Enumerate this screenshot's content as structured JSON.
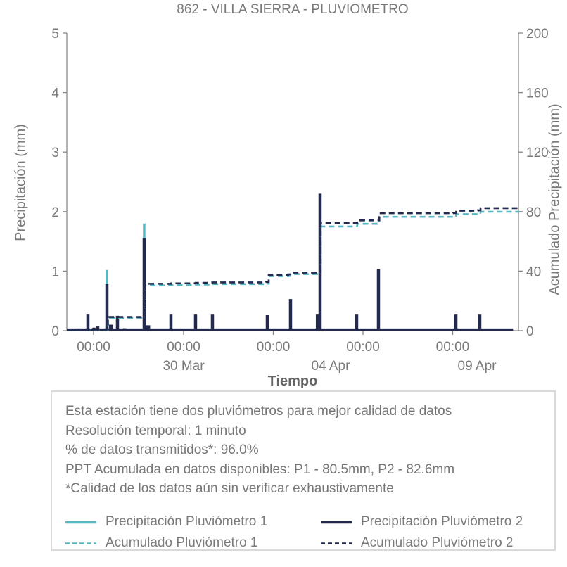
{
  "title": "862 - VILLA SIERRA - PLUVIOMETRO",
  "colors": {
    "teal": "#57b8c4",
    "navy": "#232a4e",
    "axis": "#888888",
    "text": "#7a7a7a",
    "box_border": "#d9d9d9"
  },
  "chart_data": {
    "type": "line",
    "title": "862 - VILLA SIERRA - PLUVIOMETRO",
    "xlabel": "Tiempo",
    "ylabel_left": "Precipitación (mm)",
    "ylabel_right": "Acumulado Precipitación (mm)",
    "ylim_left": [
      0,
      5
    ],
    "ylim_right": [
      0,
      200
    ],
    "yticks_left": [
      0,
      1,
      2,
      3,
      4,
      5
    ],
    "yticks_right": [
      0,
      40,
      80,
      120,
      160,
      200
    ],
    "grid": false,
    "legend_position": "bottom-annotation-box",
    "xticks": [
      {
        "t": 0.0592,
        "label": "00:00"
      },
      {
        "t": 0.2586,
        "label": "00:00"
      },
      {
        "t": 0.4572,
        "label": "00:00"
      },
      {
        "t": 0.6558,
        "label": "00:00"
      },
      {
        "t": 0.8543,
        "label": "00:00"
      }
    ],
    "xdates": [
      {
        "t": 0.2586,
        "label": "30 Mar"
      },
      {
        "t": 0.5841,
        "label": "04 Apr"
      },
      {
        "t": 0.9081,
        "label": "09 Apr"
      }
    ],
    "series": [
      {
        "name": "Precipitación Pluviómetro 1",
        "color": "#57b8c4",
        "kind": "spikes",
        "axis": "left",
        "width": 3.5,
        "baseline": false,
        "points": [
          [
            0.0888,
            1.02
          ],
          [
            0.1713,
            1.8
          ]
        ]
      },
      {
        "name": "Precipitación Pluviómetro 2",
        "color": "#232a4e",
        "kind": "spikes",
        "axis": "left",
        "width": 4.5,
        "baseline": true,
        "points": [
          [
            0.0467,
            0.27
          ],
          [
            0.06,
            0.05
          ],
          [
            0.0685,
            0.07
          ],
          [
            0.0888,
            0.78
          ],
          [
            0.098,
            0.1,
            6
          ],
          [
            0.1121,
            0.25
          ],
          [
            0.128,
            0.04
          ],
          [
            0.1713,
            1.55
          ],
          [
            0.179,
            0.09,
            7
          ],
          [
            0.2305,
            0.27
          ],
          [
            0.285,
            0.27
          ],
          [
            0.3224,
            0.27
          ],
          [
            0.35,
            0.03
          ],
          [
            0.4439,
            0.26
          ],
          [
            0.4953,
            0.53
          ],
          [
            0.556,
            0.27,
            6
          ],
          [
            0.5607,
            2.3
          ],
          [
            0.6417,
            0.27
          ],
          [
            0.69,
            1.03
          ],
          [
            0.73,
            0.03
          ],
          [
            0.8614,
            0.27
          ],
          [
            0.9143,
            0.27
          ]
        ]
      },
      {
        "name": "Acumulado Pluviómetro 1",
        "color": "#57b8c4",
        "kind": "steps",
        "axis": "right",
        "width": 2.6,
        "dash": "8 5",
        "points": [
          [
            0.0,
            0.2
          ],
          [
            0.046,
            0.5
          ],
          [
            0.088,
            0.7
          ],
          [
            0.091,
            8.6
          ],
          [
            0.17,
            8.8
          ],
          [
            0.174,
            30.4
          ],
          [
            0.231,
            30.7
          ],
          [
            0.285,
            31.0
          ],
          [
            0.322,
            31.3
          ],
          [
            0.44,
            31.6
          ],
          [
            0.447,
            36.6
          ],
          [
            0.49,
            36.8
          ],
          [
            0.495,
            38.0
          ],
          [
            0.557,
            38.1
          ],
          [
            0.562,
            70.0
          ],
          [
            0.638,
            70.1
          ],
          [
            0.643,
            71.8
          ],
          [
            0.687,
            71.9
          ],
          [
            0.692,
            76.5
          ],
          [
            0.855,
            76.6
          ],
          [
            0.862,
            78.3
          ],
          [
            0.91,
            78.5
          ],
          [
            0.916,
            79.9
          ],
          [
            1.0,
            80.5
          ]
        ]
      },
      {
        "name": "Acumulado Pluviómetro 2",
        "color": "#232a4e",
        "kind": "steps",
        "axis": "right",
        "width": 2.6,
        "dash": "8 5",
        "points": [
          [
            0.0,
            0.3
          ],
          [
            0.046,
            0.7
          ],
          [
            0.088,
            0.9
          ],
          [
            0.091,
            9.2
          ],
          [
            0.17,
            9.4
          ],
          [
            0.174,
            31.5
          ],
          [
            0.231,
            31.8
          ],
          [
            0.285,
            32.1
          ],
          [
            0.322,
            32.4
          ],
          [
            0.44,
            32.7
          ],
          [
            0.447,
            37.5
          ],
          [
            0.49,
            37.8
          ],
          [
            0.495,
            39.0
          ],
          [
            0.557,
            39.2
          ],
          [
            0.562,
            72.3
          ],
          [
            0.638,
            72.4
          ],
          [
            0.643,
            74.1
          ],
          [
            0.687,
            74.2
          ],
          [
            0.692,
            78.9
          ],
          [
            0.855,
            79.0
          ],
          [
            0.862,
            80.6
          ],
          [
            0.91,
            80.8
          ],
          [
            0.916,
            82.3
          ],
          [
            1.0,
            82.6
          ]
        ]
      }
    ],
    "totals": {
      "P1_mm": 80.5,
      "P2_mm": 82.6
    }
  },
  "info": {
    "lines": [
      "Esta estación tiene dos pluviómetros para mejor calidad de datos",
      "Resolución temporal: 1 minuto",
      "% de datos transmitidos*: 96.0%",
      "PPT Acumulada en datos disponibles: P1 - 80.5mm, P2 - 82.6mm",
      "*Calidad de los datos aún sin verificar exhaustivamente"
    ],
    "legend": {
      "items": [
        {
          "label": "Precipitación Pluviómetro 1",
          "color": "#57b8c4",
          "dash": false
        },
        {
          "label": "Precipitación Pluviómetro 2",
          "color": "#232a4e",
          "dash": false
        },
        {
          "label": "Acumulado Pluviómetro 1",
          "color": "#57b8c4",
          "dash": true
        },
        {
          "label": "Acumulado Pluviómetro 2",
          "color": "#232a4e",
          "dash": true
        }
      ]
    }
  }
}
